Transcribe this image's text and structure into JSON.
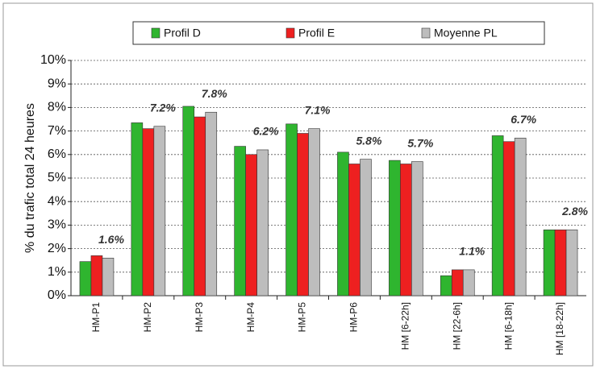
{
  "chart_data": {
    "type": "bar",
    "y_label": "% du trafic total 24 heures",
    "categories": [
      "HM-P1",
      "HM-P2",
      "HM-P3",
      "HM-P4",
      "HM-P5",
      "HM-P6",
      "HM [6-22h]",
      "HM [22-6h]",
      "HM [6-18h]",
      "HM [18-22h]"
    ],
    "series": [
      {
        "name": "Profil D",
        "color": "#2fb52f",
        "values": [
          1.45,
          7.35,
          8.05,
          6.35,
          7.3,
          6.1,
          5.75,
          0.85,
          6.8,
          2.8
        ]
      },
      {
        "name": "Profil E",
        "color": "#ee2020",
        "values": [
          1.7,
          7.1,
          7.6,
          6.0,
          6.9,
          5.6,
          5.6,
          1.1,
          6.55,
          2.8
        ]
      },
      {
        "name": "Moyenne PL",
        "color": "#bdbdbd",
        "values": [
          1.6,
          7.2,
          7.8,
          6.2,
          7.1,
          5.8,
          5.7,
          1.1,
          6.7,
          2.8
        ],
        "value_labels": [
          "1.6%",
          "7.2%",
          "7.8%",
          "6.2%",
          "7.1%",
          "5.8%",
          "5.7%",
          "1.1%",
          "6.7%",
          "2.8%"
        ]
      }
    ],
    "ylim": [
      0,
      10
    ],
    "yticks": [
      {
        "value": 0,
        "label": "0%"
      },
      {
        "value": 1,
        "label": "1%"
      },
      {
        "value": 2,
        "label": "2%"
      },
      {
        "value": 3,
        "label": "3%"
      },
      {
        "value": 4,
        "label": "4%"
      },
      {
        "value": 5,
        "label": "5%"
      },
      {
        "value": 6,
        "label": "6%"
      },
      {
        "value": 7,
        "label": "7%"
      },
      {
        "value": 8,
        "label": "8%"
      },
      {
        "value": 9,
        "label": "9%"
      },
      {
        "value": 10,
        "label": "10%"
      }
    ],
    "grid": true,
    "legend": "top"
  }
}
